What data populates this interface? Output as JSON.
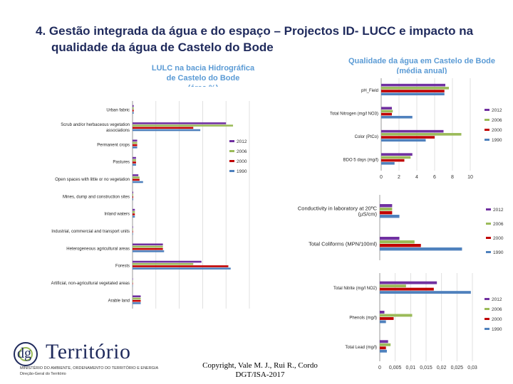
{
  "title": {
    "line1": "4. Gestão integrada da água e do espaço – Projectos ID- LUCC  e impacto na",
    "line2": "qualidade da água de Castelo do Bode"
  },
  "captions": {
    "lulc": [
      "LULC na bacia Hidrográfica",
      "de Castelo do Bode",
      "(área %)"
    ],
    "water": [
      "Qualidade da água em Castelo de Bode",
      "(média anual)"
    ]
  },
  "colors": {
    "2012": "#7030a0",
    "2006": "#9bbb59",
    "2000": "#c00000",
    "1990": "#4f81bd"
  },
  "footer": {
    "copyright": [
      "Copyright, Vale M. J., Rui R., Cordo",
      "DGT/ISA-2017"
    ],
    "logo_main": "Território",
    "logo_prefix": "dg",
    "logo_sub1": "MINISTÉRIO DO AMBIENTE, ORDENAMENTO DO TERRITÓRIO E ENERGIA",
    "logo_sub2": "Direção-Geral do Território"
  },
  "chart_data": [
    {
      "id": "lulc",
      "type": "bar",
      "orientation": "horizontal",
      "categories": [
        "Urban fabric",
        "Scrub and/or herbaceous vegetation associations",
        "Permanent crops",
        "Pastures",
        "Open spaces with little or no vegetation",
        "Mines, dump and construction sites",
        "Inland waters",
        "Industrial, commercial and transport units",
        "Heterogeneous agricultural areas",
        "Forests",
        "Artificial, non-agricultural vegetated areas",
        "Arable land"
      ],
      "legend": [
        "2012",
        "2006",
        "2000",
        "1990"
      ],
      "series": [
        {
          "name": "2012",
          "values": [
            0.5,
            40,
            2,
            1.5,
            2.5,
            0.3,
            1,
            0.2,
            13,
            29.5,
            0.1,
            3.5
          ]
        },
        {
          "name": "2006",
          "values": [
            0.5,
            43,
            2,
            1.5,
            3,
            0.3,
            1,
            0.2,
            13,
            26,
            0.1,
            3.5
          ]
        },
        {
          "name": "2000",
          "values": [
            0.5,
            26,
            2,
            1.5,
            3,
            0.3,
            1,
            0.2,
            13,
            41,
            0.1,
            3.5
          ]
        },
        {
          "name": "1990",
          "values": [
            0.5,
            29,
            2,
            1.5,
            4.5,
            0.3,
            1,
            0.2,
            13.5,
            42,
            0.1,
            3.5
          ]
        }
      ],
      "xlim": [
        0,
        50
      ]
    },
    {
      "id": "wq1",
      "type": "bar",
      "orientation": "horizontal",
      "categories": [
        "pH_Field",
        "Total Nitrogen (mg/l NO3)",
        "Color (PtCo)",
        "BDO 5 days (mg/l)"
      ],
      "legend": [
        "2012",
        "2006",
        "2000",
        "1990"
      ],
      "series": [
        {
          "name": "2012",
          "values": [
            7.2,
            1.2,
            7.0,
            3.5
          ]
        },
        {
          "name": "2006",
          "values": [
            7.6,
            1.3,
            9.0,
            3.3
          ]
        },
        {
          "name": "2000",
          "values": [
            7.1,
            1.2,
            6.0,
            2.6
          ]
        },
        {
          "name": "1990",
          "values": [
            7.1,
            3.5,
            5.0,
            1.5
          ]
        }
      ],
      "xlim": [
        0,
        10
      ],
      "xticks": [
        "0",
        "2",
        "4",
        "6",
        "8",
        "10"
      ]
    },
    {
      "id": "wq2",
      "type": "bar",
      "orientation": "horizontal",
      "categories": [
        "Conductivity in laboratory at 20ºC (µS/cm)",
        "Total Coliforms (MPN/100ml)"
      ],
      "legend": [
        "2012",
        "2006",
        "2000",
        "1990"
      ],
      "series": [
        {
          "name": "2012",
          "values": [
            2,
            3
          ]
        },
        {
          "name": "2006",
          "values": [
            2,
            7
          ]
        },
        {
          "name": "2000",
          "values": [
            2,
            10
          ]
        },
        {
          "name": "1990",
          "values": [
            3,
            100
          ]
        }
      ]
    },
    {
      "id": "wq3",
      "type": "bar",
      "orientation": "horizontal",
      "categories": [
        "Total Nitrite (mg/l NO2)",
        "Phenols (mg/l)",
        "Total Lead (mg/l)"
      ],
      "legend": [
        "2012",
        "2006",
        "2000",
        "1990"
      ],
      "series": [
        {
          "name": "2012",
          "values": [
            0.0185,
            0.0015,
            0.0027
          ]
        },
        {
          "name": "2006",
          "values": [
            0.0085,
            0.0105,
            0.0035
          ]
        },
        {
          "name": "2000",
          "values": [
            0.0175,
            0.0045,
            0.002
          ]
        },
        {
          "name": "1990",
          "values": [
            0.0295,
            0.002,
            0.0023
          ]
        }
      ],
      "xlim": [
        0,
        0.03
      ],
      "xticks": [
        "0",
        "0,005",
        "0,01",
        "0,015",
        "0,02",
        "0,025",
        "0,03"
      ]
    }
  ]
}
